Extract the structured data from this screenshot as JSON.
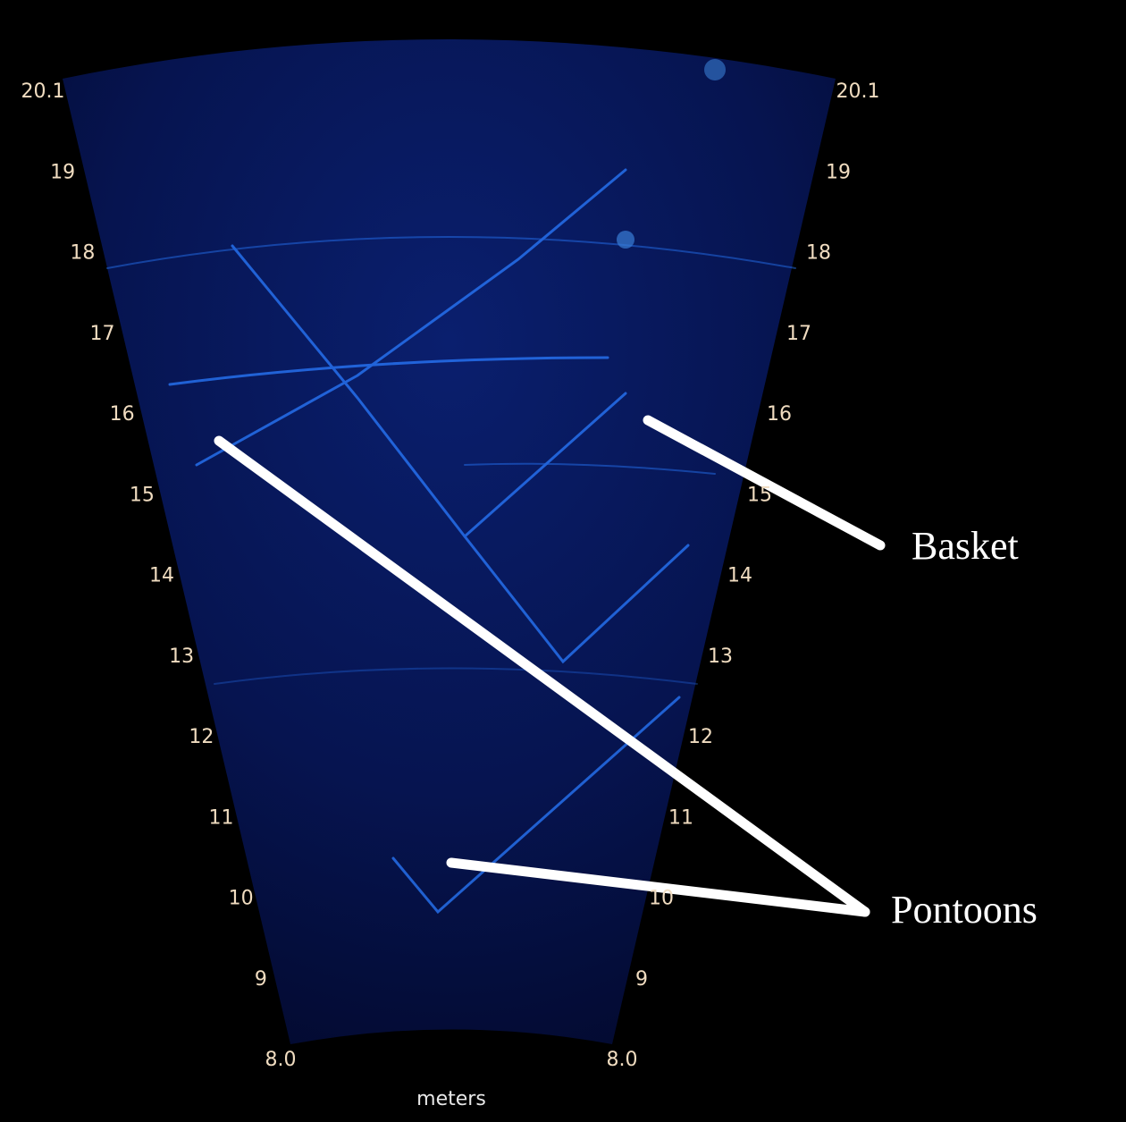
{
  "range_labels": [
    "20.1",
    "19",
    "18",
    "17",
    "16",
    "15",
    "14",
    "13",
    "12",
    "11",
    "10",
    "9",
    "8.0"
  ],
  "unit_label": "meters",
  "annotations": [
    "Basket",
    "Pontoons"
  ]
}
